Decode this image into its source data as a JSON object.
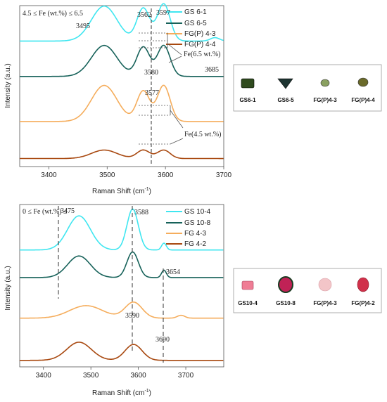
{
  "chart_data": [
    {
      "type": "line",
      "panel": "top",
      "condition_label": "4.5 ≤ Fe (wt.%) ≤ 6.5",
      "xlabel": "Raman Shift (cm",
      "xlabel_sup": "-1",
      "xlabel_end": ")",
      "ylabel": "Intensity (a.u.)",
      "xlim": [
        3350,
        3700
      ],
      "xticks": [
        "3400",
        "3500",
        "3600",
        "3700"
      ],
      "series": [
        {
          "name": "GS 6-1",
          "color": "#3fe6f0",
          "offset": 0.78,
          "amp": 1.0,
          "peaks": [
            [
              3495,
              0.62,
              22
            ],
            [
              3562,
              0.58,
              11
            ],
            [
              3597,
              0.66,
              11
            ]
          ],
          "shoulder": [
            [
              3685,
              0.06,
              8
            ]
          ]
        },
        {
          "name": "GS 6-5",
          "color": "#17625a",
          "offset": 0.56,
          "amp": 1.0,
          "peaks": [
            [
              3495,
              0.55,
              22
            ],
            [
              3562,
              0.52,
              11
            ],
            [
              3597,
              0.55,
              11
            ]
          ]
        },
        {
          "name": "FG(P) 4-3",
          "color": "#f5ad5c",
          "offset": 0.28,
          "amp": 1.0,
          "peaks": [
            [
              3495,
              0.64,
              22
            ],
            [
              3562,
              0.54,
              11
            ],
            [
              3597,
              0.64,
              11
            ]
          ]
        },
        {
          "name": "FG(P) 4-4",
          "color": "#a8480f",
          "offset": 0.05,
          "amp": 1.0,
          "peaks": [
            [
              3495,
              0.15,
              22
            ],
            [
              3562,
              0.15,
              11
            ],
            [
              3597,
              0.15,
              11
            ]
          ]
        }
      ],
      "annotations": [
        "3495",
        "3562",
        "3597",
        "3580",
        "3685",
        "3577"
      ],
      "fe_labels": [
        "Fe(6.5 wt.%)",
        "Fe(4.5 wt.%)"
      ]
    },
    {
      "type": "line",
      "panel": "bottom",
      "condition_label": "0 ≤ Fe (wt.%) ≤",
      "xlabel": "Raman Shift (cm",
      "xlabel_sup": "-1",
      "xlabel_end": ")",
      "ylabel": "Intensity (a.u.)",
      "xlim": [
        3350,
        3780
      ],
      "xticks": [
        "3400",
        "3500",
        "3600",
        "3700"
      ],
      "series": [
        {
          "name": "GS 10-4",
          "color": "#3fe6f0",
          "offset": 0.72,
          "amp": 1.0,
          "peaks": [
            [
              3475,
              0.6,
              24
            ],
            [
              3588,
              0.72,
              12
            ],
            [
              3654,
              0.12,
              5
            ]
          ]
        },
        {
          "name": "GS 10-8",
          "color": "#17625a",
          "offset": 0.55,
          "amp": 1.0,
          "peaks": [
            [
              3475,
              0.38,
              24
            ],
            [
              3588,
              0.45,
              12
            ],
            [
              3654,
              0.13,
              5
            ]
          ]
        },
        {
          "name": "FG 4-3",
          "color": "#f5ad5c",
          "offset": 0.3,
          "amp": 1.0,
          "peaks": [
            [
              3490,
              0.22,
              35
            ],
            [
              3590,
              0.28,
              18
            ],
            [
              3690,
              0.05,
              8
            ]
          ]
        },
        {
          "name": "FG 4-2",
          "color": "#a8480f",
          "offset": 0.04,
          "amp": 1.0,
          "peaks": [
            [
              3475,
              0.32,
              26
            ],
            [
              3590,
              0.28,
              18
            ]
          ]
        }
      ],
      "annotations": [
        "3475",
        "3588",
        "3654",
        "3590",
        "3690"
      ]
    }
  ],
  "gems_top": {
    "labels": [
      "GS6-1",
      "GS6-5",
      "FG(P)4-3",
      "FG(P)4-4"
    ],
    "colors": [
      "#2f4a1e",
      "#1d3431",
      "#8aa060",
      "#6a6a2a"
    ]
  },
  "gems_bottom": {
    "labels": [
      "GS10-4",
      "GS10-8",
      "FG(P)4-3",
      "FG(P)4-2"
    ],
    "colors": [
      "#ef7d95",
      "#c02256",
      "#f3c5c8",
      "#d0304a"
    ]
  }
}
